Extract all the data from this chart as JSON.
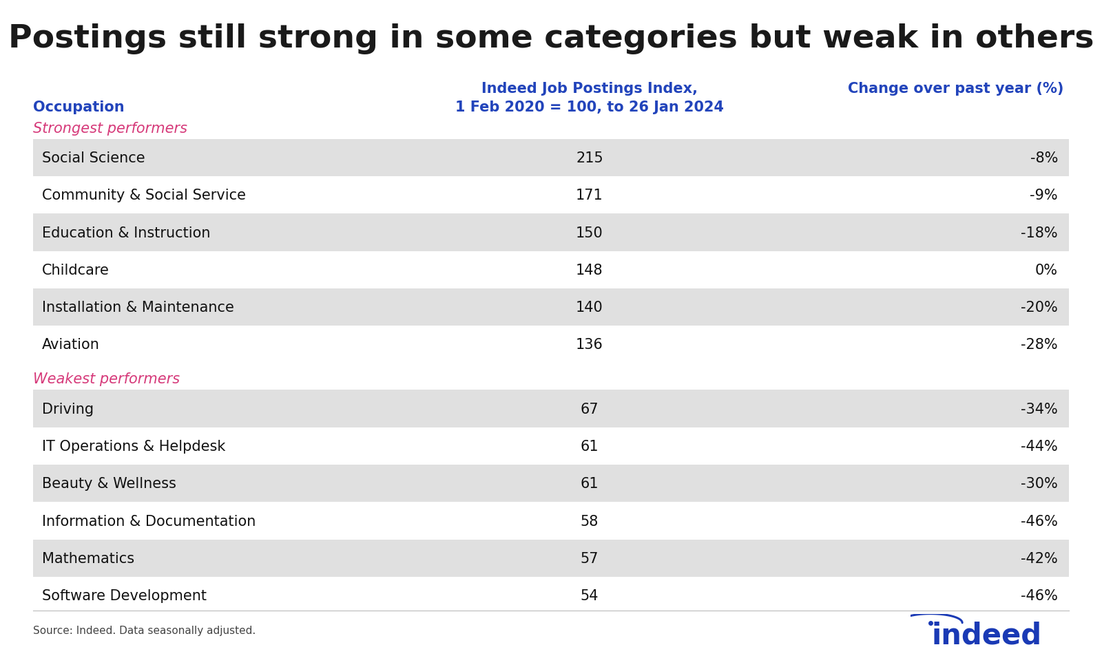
{
  "title": "Postings still strong in some categories but weak in others",
  "col1_header": "Occupation",
  "col2_header_line1": "Indeed Job Postings Index,",
  "col2_header_line2": "1 Feb 2020 = 100, to 26 Jan 2024",
  "col3_header": "Change over past year (%)",
  "strongest_label": "Strongest performers",
  "weakest_label": "Weakest performers",
  "strongest_rows": [
    {
      "occupation": "Social Science",
      "index": "215",
      "change": "-8%"
    },
    {
      "occupation": "Community & Social Service",
      "index": "171",
      "change": "-9%"
    },
    {
      "occupation": "Education & Instruction",
      "index": "150",
      "change": "-18%"
    },
    {
      "occupation": "Childcare",
      "index": "148",
      "change": "0%"
    },
    {
      "occupation": "Installation & Maintenance",
      "index": "140",
      "change": "-20%"
    },
    {
      "occupation": "Aviation",
      "index": "136",
      "change": "-28%"
    }
  ],
  "weakest_rows": [
    {
      "occupation": "Driving",
      "index": "67",
      "change": "-34%"
    },
    {
      "occupation": "IT Operations & Helpdesk",
      "index": "61",
      "change": "-44%"
    },
    {
      "occupation": "Beauty & Wellness",
      "index": "61",
      "change": "-30%"
    },
    {
      "occupation": "Information & Documentation",
      "index": "58",
      "change": "-46%"
    },
    {
      "occupation": "Mathematics",
      "index": "57",
      "change": "-42%"
    },
    {
      "occupation": "Software Development",
      "index": "54",
      "change": "-46%"
    }
  ],
  "source_text": "Source: Indeed. Data seasonally adjusted.",
  "bg_color": "#ffffff",
  "row_shaded_color": "#e0e0e0",
  "row_white_color": "#ffffff",
  "title_color": "#1a1a1a",
  "header_col_color": "#2244bb",
  "strongest_color": "#d63a7a",
  "weakest_color": "#d63a7a",
  "data_color": "#111111",
  "indeed_blue": "#1a3ab5",
  "title_fontsize": 34,
  "header_fontsize": 15,
  "label_fontsize": 15,
  "row_fontsize": 15,
  "source_fontsize": 11
}
